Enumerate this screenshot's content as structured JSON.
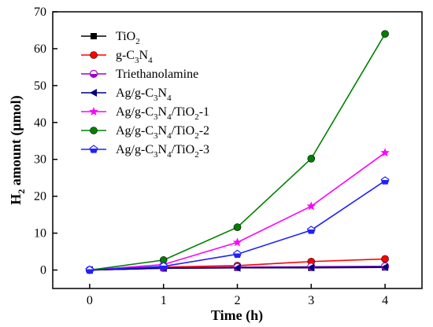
{
  "chart_data": {
    "type": "line",
    "xlabel": "Time (h)",
    "ylabel": "H2 amount (μmol)",
    "xlim": [
      -0.5,
      4.5
    ],
    "ylim": [
      -5,
      70
    ],
    "x_ticks": [
      0,
      1,
      2,
      3,
      4
    ],
    "y_ticks": [
      0,
      10,
      20,
      30,
      40,
      50,
      60,
      70
    ],
    "x": [
      0,
      1,
      2,
      3,
      4
    ],
    "legend_position": "top-left",
    "grid": false,
    "series": [
      {
        "name": "TiO2",
        "color": "#000000",
        "marker": "square",
        "values": [
          0,
          0.5,
          0.6,
          0.6,
          0.7
        ]
      },
      {
        "name": "g-C3N4",
        "color": "#ff0000",
        "marker": "circle",
        "values": [
          0,
          0.8,
          1.2,
          2.3,
          3.0
        ]
      },
      {
        "name": "Triethanolamine",
        "color": "#a000c8",
        "marker": "half-circle",
        "values": [
          0,
          0.6,
          0.8,
          0.9,
          1.0
        ]
      },
      {
        "name": "Ag/g-C3N4",
        "color": "#000080",
        "marker": "left-triangle",
        "values": [
          0,
          0.5,
          0.6,
          0.7,
          0.8
        ]
      },
      {
        "name": "Ag/g-C3N4/TiO2-1",
        "color": "#ff00ff",
        "marker": "star",
        "values": [
          0,
          1.5,
          7.5,
          17.3,
          31.8
        ]
      },
      {
        "name": "Ag/g-C3N4/TiO2-2",
        "color": "#008000",
        "marker": "circle",
        "values": [
          0,
          2.7,
          11.6,
          30.2,
          64.0
        ]
      },
      {
        "name": "Ag/g-C3N4/TiO2-3",
        "color": "#2020ff",
        "marker": "pentagon",
        "values": [
          0,
          1.0,
          4.3,
          10.8,
          24.2
        ]
      }
    ]
  }
}
